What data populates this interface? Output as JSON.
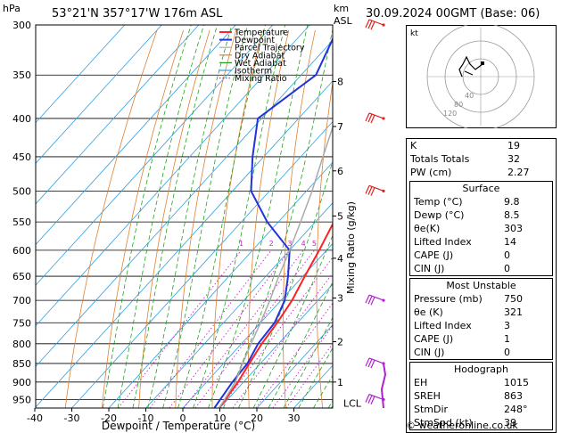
{
  "header": {
    "unit_p": "hPa",
    "location": "53°21'N  357°17'W  176m  ASL",
    "km": "km",
    "asl": "ASL",
    "datetime": "30.09.2024  00GMT  (Base: 06)"
  },
  "chart_data": {
    "type": "line",
    "title": "",
    "xlabel": "Dewpoint / Temperature (°C)",
    "ylabel": "hPa",
    "mixing_axis_label": "Mixing Ratio (g/kg)",
    "x_ticks": [
      "-40",
      "-30",
      "-20",
      "-10",
      "0",
      "10",
      "20",
      "30"
    ],
    "x_tick_values": [
      -40,
      -30,
      -20,
      -10,
      0,
      10,
      20,
      30
    ],
    "p_ticks": [
      300,
      350,
      400,
      450,
      500,
      550,
      600,
      650,
      700,
      750,
      800,
      850,
      900,
      950
    ],
    "km_ticks": [
      {
        "km": "1",
        "p": 900
      },
      {
        "km": "2",
        "p": 795
      },
      {
        "km": "3",
        "p": 695
      },
      {
        "km": "4",
        "p": 615
      },
      {
        "km": "5",
        "p": 540
      },
      {
        "km": "6",
        "p": 470
      },
      {
        "km": "7",
        "p": 410
      },
      {
        "km": "8",
        "p": 357
      }
    ],
    "lcl": {
      "label": "LCL",
      "p": 960
    },
    "mixing_ratio_labels": [
      "1",
      "2",
      "3",
      "4",
      "5",
      "8",
      "10",
      "15",
      "20",
      "25"
    ],
    "legend": [
      "Temperature",
      "Dewpoint",
      "Parcel Trajectory",
      "Dry Adiabat",
      "Wet Adiabat",
      "Isotherm",
      "Mixing Ratio"
    ],
    "legend_colors": [
      "#ff2222",
      "#2233dd",
      "#aaaaaa",
      "#e08030",
      "#20a020",
      "#30a0e0",
      "#d020d0"
    ],
    "series": [
      {
        "name": "Temperature",
        "color": "#ff2222",
        "points": [
          [
            9.8,
            975
          ],
          [
            8.5,
            900
          ],
          [
            7,
            850
          ],
          [
            5.5,
            800
          ],
          [
            4.5,
            750
          ],
          [
            3,
            700
          ],
          [
            0.5,
            650
          ],
          [
            -2,
            600
          ],
          [
            -5,
            550
          ],
          [
            -9,
            500
          ],
          [
            -13.5,
            450
          ],
          [
            -19.5,
            400
          ],
          [
            -26,
            350
          ],
          [
            -33,
            300
          ]
        ]
      },
      {
        "name": "Dewpoint",
        "color": "#2233dd",
        "points": [
          [
            8.5,
            975
          ],
          [
            7,
            900
          ],
          [
            6.5,
            850
          ],
          [
            4.5,
            800
          ],
          [
            3.8,
            750
          ],
          [
            1,
            700
          ],
          [
            -4,
            650
          ],
          [
            -10,
            600
          ],
          [
            -23,
            550
          ],
          [
            -35,
            500
          ],
          [
            -43,
            450
          ],
          [
            -51,
            400
          ],
          [
            -46,
            350
          ],
          [
            -52,
            300
          ]
        ]
      },
      {
        "name": "Parcel Trajectory",
        "color": "#aaaaaa",
        "points": [
          [
            9.8,
            975
          ],
          [
            7.8,
            900
          ],
          [
            5.2,
            850
          ],
          [
            2.6,
            800
          ],
          [
            0,
            750
          ],
          [
            -3,
            700
          ],
          [
            -6.5,
            650
          ],
          [
            -10,
            600
          ],
          [
            -14,
            550
          ],
          [
            -18.5,
            500
          ],
          [
            -24,
            450
          ],
          [
            -30,
            400
          ],
          [
            -37,
            350
          ],
          [
            -45,
            300
          ]
        ]
      }
    ],
    "wind_barbs_p": [
      300,
      400,
      500,
      700,
      850,
      950
    ]
  },
  "hodograph": {
    "label": "kt",
    "rings": [
      "40",
      "80",
      "120"
    ]
  },
  "indices": [
    {
      "k": "K",
      "v": "19"
    },
    {
      "k": "Totals Totals",
      "v": "32"
    },
    {
      "k": "PW (cm)",
      "v": "2.27"
    }
  ],
  "surface": {
    "title": "Surface",
    "rows": [
      {
        "k": "Temp (°C)",
        "v": "9.8"
      },
      {
        "k": "Dewp (°C)",
        "v": "8.5"
      },
      {
        "k": "θe(K)",
        "v": "303"
      },
      {
        "k": "Lifted Index",
        "v": "14"
      },
      {
        "k": "CAPE (J)",
        "v": "0"
      },
      {
        "k": "CIN (J)",
        "v": "0"
      }
    ]
  },
  "unstable": {
    "title": "Most Unstable",
    "rows": [
      {
        "k": "Pressure (mb)",
        "v": "750"
      },
      {
        "k": "θe (K)",
        "v": "321"
      },
      {
        "k": "Lifted Index",
        "v": "3"
      },
      {
        "k": "CAPE (J)",
        "v": "1"
      },
      {
        "k": "CIN (J)",
        "v": "0"
      }
    ]
  },
  "hodo_table": {
    "title": "Hodograph",
    "rows": [
      {
        "k": "EH",
        "v": "1015"
      },
      {
        "k": "SREH",
        "v": "863"
      },
      {
        "k": "StmDir",
        "v": "248°"
      },
      {
        "k": "StmSpd (kt)",
        "v": "39"
      }
    ]
  },
  "credit": "© weatheronline.co.uk"
}
